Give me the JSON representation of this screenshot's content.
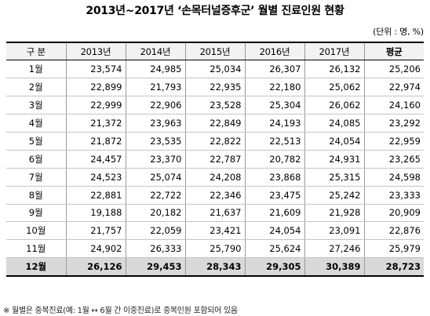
{
  "title": "2013년~2017년 ‘손목터널증후군’ 월별 진료인원 현황",
  "unit": "(단위 : 명, %)",
  "table": {
    "headers": [
      "구 분",
      "2013년",
      "2014년",
      "2015년",
      "2016년",
      "2017년",
      "평균"
    ],
    "rows": [
      [
        "1월",
        "23,574",
        "24,985",
        "25,034",
        "26,307",
        "26,132",
        "25,206"
      ],
      [
        "2월",
        "22,899",
        "21,793",
        "22,935",
        "22,180",
        "25,062",
        "22,974"
      ],
      [
        "3월",
        "22,999",
        "22,906",
        "23,528",
        "25,304",
        "26,062",
        "24,160"
      ],
      [
        "4월",
        "21,372",
        "23,963",
        "22,849",
        "24,193",
        "24,085",
        "23,292"
      ],
      [
        "5월",
        "21,872",
        "23,535",
        "22,822",
        "22,513",
        "24,054",
        "22,959"
      ],
      [
        "6월",
        "24,457",
        "23,370",
        "22,787",
        "20,782",
        "24,931",
        "23,265"
      ],
      [
        "7월",
        "24,523",
        "25,074",
        "24,208",
        "23,868",
        "25,315",
        "24,598"
      ],
      [
        "8월",
        "22,881",
        "22,722",
        "22,346",
        "23,475",
        "25,242",
        "23,333"
      ],
      [
        "9월",
        "19,188",
        "20,182",
        "21,637",
        "21,609",
        "21,928",
        "20,909"
      ],
      [
        "10월",
        "21,757",
        "22,059",
        "23,421",
        "24,054",
        "23,091",
        "22,876"
      ],
      [
        "11월",
        "24,902",
        "26,333",
        "25,790",
        "25,624",
        "27,246",
        "25,979"
      ],
      [
        "12월",
        "26,126",
        "29,453",
        "28,343",
        "29,305",
        "30,389",
        "28,723"
      ]
    ]
  },
  "footnote": "※ 월별은 중복진료(예: 1월 ↔ 6월 간 이중진료)로 중복인원 포함되어 있음"
}
